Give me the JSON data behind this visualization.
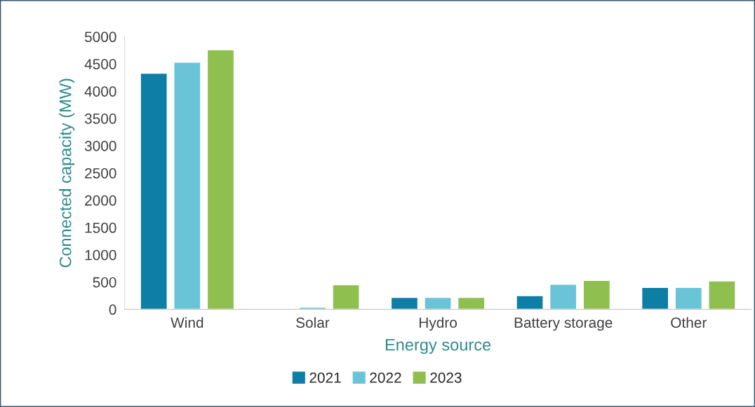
{
  "chart_data": {
    "type": "bar",
    "xlabel": "Energy source",
    "ylabel": "Connected capacity (MW)",
    "categories": [
      "Wind",
      "Solar",
      "Hydro",
      "Battery storage",
      "Other"
    ],
    "series": [
      {
        "name": "2021",
        "color": "#0f7ea6",
        "values": [
          4330,
          null,
          220,
          250,
          400
        ]
      },
      {
        "name": "2022",
        "color": "#6ac4d8",
        "values": [
          4530,
          40,
          220,
          460,
          400
        ]
      },
      {
        "name": "2023",
        "color": "#8fbf4f",
        "values": [
          4760,
          450,
          220,
          530,
          520
        ]
      }
    ],
    "ylim": [
      0,
      5000
    ],
    "yticks": [
      0,
      500,
      1000,
      1500,
      2000,
      2500,
      3000,
      3500,
      4000,
      4500,
      5000
    ],
    "grid": false,
    "legend": "bottom"
  }
}
